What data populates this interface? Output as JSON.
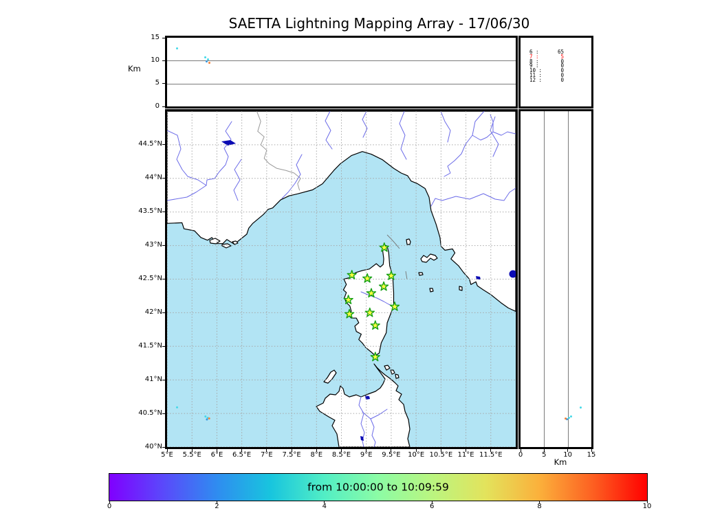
{
  "title": "SAETTA Lightning Mapping Array - 17/06/30",
  "colors": {
    "sea": "#b2e4f4",
    "land": "#ffffff",
    "coast": "#000000",
    "river": "#6b6be8",
    "lake": "#0b0bb4",
    "border": "#999999",
    "grid": "#a6a6a6",
    "panel_grid": "#7a7a7a",
    "star_fill": "#fdfd40",
    "star_stroke": "#15a015",
    "highlight_red": "#ff0000"
  },
  "chart_data": {
    "type": "scatter",
    "title": "SAETTA Lightning Mapping Array - 17/06/30",
    "map_extent": {
      "lon_min": 5,
      "lon_max": 12,
      "lat_min": 40,
      "lat_max": 45
    },
    "altitude_range_km": [
      0,
      15
    ],
    "lightning_sources": [
      {
        "lon": 5.2,
        "lat": 40.59,
        "alt_km": 12.75,
        "color": "#45d8e8"
      },
      {
        "lon": 5.77,
        "lat": 40.455,
        "alt_km": 10.75,
        "color": "#45d8e8"
      },
      {
        "lon": 5.815,
        "lat": 40.435,
        "alt_km": 10.3,
        "color": "#45d8e8"
      },
      {
        "lon": 5.8,
        "lat": 40.41,
        "alt_km": 9.9,
        "color": "#3a9ae0"
      },
      {
        "lon": 5.845,
        "lat": 40.425,
        "alt_km": 9.55,
        "color": "#f5823a"
      }
    ],
    "stations": [
      {
        "lon": 9.36,
        "lat": 42.97
      },
      {
        "lon": 8.71,
        "lat": 42.56
      },
      {
        "lon": 9.02,
        "lat": 42.51
      },
      {
        "lon": 9.5,
        "lat": 42.55
      },
      {
        "lon": 9.35,
        "lat": 42.39
      },
      {
        "lon": 9.1,
        "lat": 42.29
      },
      {
        "lon": 8.64,
        "lat": 42.19
      },
      {
        "lon": 9.57,
        "lat": 42.09
      },
      {
        "lon": 9.07,
        "lat": 42.0
      },
      {
        "lon": 8.66,
        "lat": 41.98
      },
      {
        "lon": 9.18,
        "lat": 41.81
      },
      {
        "lon": 9.18,
        "lat": 41.34
      }
    ],
    "station_stats": [
      {
        "id": "6",
        "count": "65",
        "highlight": false
      },
      {
        "id": "7",
        "count": "5",
        "highlight": true
      },
      {
        "id": "8",
        "count": "0",
        "highlight": false
      },
      {
        "id": "9",
        "count": "0",
        "highlight": false
      },
      {
        "id": "10",
        "count": "0",
        "highlight": false
      },
      {
        "id": "11",
        "count": "0",
        "highlight": false
      },
      {
        "id": "12",
        "count": "0",
        "highlight": false
      }
    ],
    "colorbar": {
      "range": [
        0,
        10
      ],
      "label": "from 10:00:00 to 10:09:59"
    }
  },
  "panels": {
    "altitude_longitude": {
      "ylabel": "Km",
      "yticks": [
        {
          "v": 15,
          "label": "15"
        },
        {
          "v": 10,
          "label": "10"
        },
        {
          "v": 5,
          "label": "5"
        },
        {
          "v": 0,
          "label": "0"
        }
      ]
    },
    "map": {
      "lat_ticks": [
        {
          "v": 44.5,
          "label": "44.5°N"
        },
        {
          "v": 44,
          "label": "44°N"
        },
        {
          "v": 43.5,
          "label": "43.5°N"
        },
        {
          "v": 43,
          "label": "43°N"
        },
        {
          "v": 42.5,
          "label": "42.5°N"
        },
        {
          "v": 42,
          "label": "42°N"
        },
        {
          "v": 41.5,
          "label": "41.5°N"
        },
        {
          "v": 41,
          "label": "41°N"
        },
        {
          "v": 40.5,
          "label": "40.5°N"
        },
        {
          "v": 40,
          "label": "40°N"
        }
      ],
      "lon_ticks": [
        {
          "v": 5,
          "label": "5°E"
        },
        {
          "v": 5.5,
          "label": "5.5°E"
        },
        {
          "v": 6,
          "label": "6°E"
        },
        {
          "v": 6.5,
          "label": "6.5°E"
        },
        {
          "v": 7,
          "label": "7°E"
        },
        {
          "v": 7.5,
          "label": "7.5°E"
        },
        {
          "v": 8,
          "label": "8°E"
        },
        {
          "v": 8.5,
          "label": "8.5°E"
        },
        {
          "v": 9,
          "label": "9°E"
        },
        {
          "v": 9.5,
          "label": "9.5°E"
        },
        {
          "v": 10,
          "label": "10°E"
        },
        {
          "v": 10.5,
          "label": "10.5°E"
        },
        {
          "v": 11,
          "label": "11°E"
        },
        {
          "v": 11.5,
          "label": "11.5°E"
        }
      ]
    },
    "altitude_latitude": {
      "xlabel": "Km",
      "xticks": [
        {
          "v": 0,
          "label": "0"
        },
        {
          "v": 5,
          "label": "5"
        },
        {
          "v": 10,
          "label": "10"
        },
        {
          "v": 15,
          "label": "15"
        }
      ]
    }
  },
  "colorbar": {
    "label": "from 10:00:00 to 10:09:59",
    "ticks": [
      "0",
      "2",
      "4",
      "6",
      "8",
      "10"
    ],
    "gradient": [
      "#8000ff",
      "#5a49fb",
      "#2f8cf0",
      "#18c5de",
      "#52eec5",
      "#8cfca5",
      "#baf580",
      "#e3e35c",
      "#fbb03b",
      "#fd5f21",
      "#ff0000"
    ]
  }
}
